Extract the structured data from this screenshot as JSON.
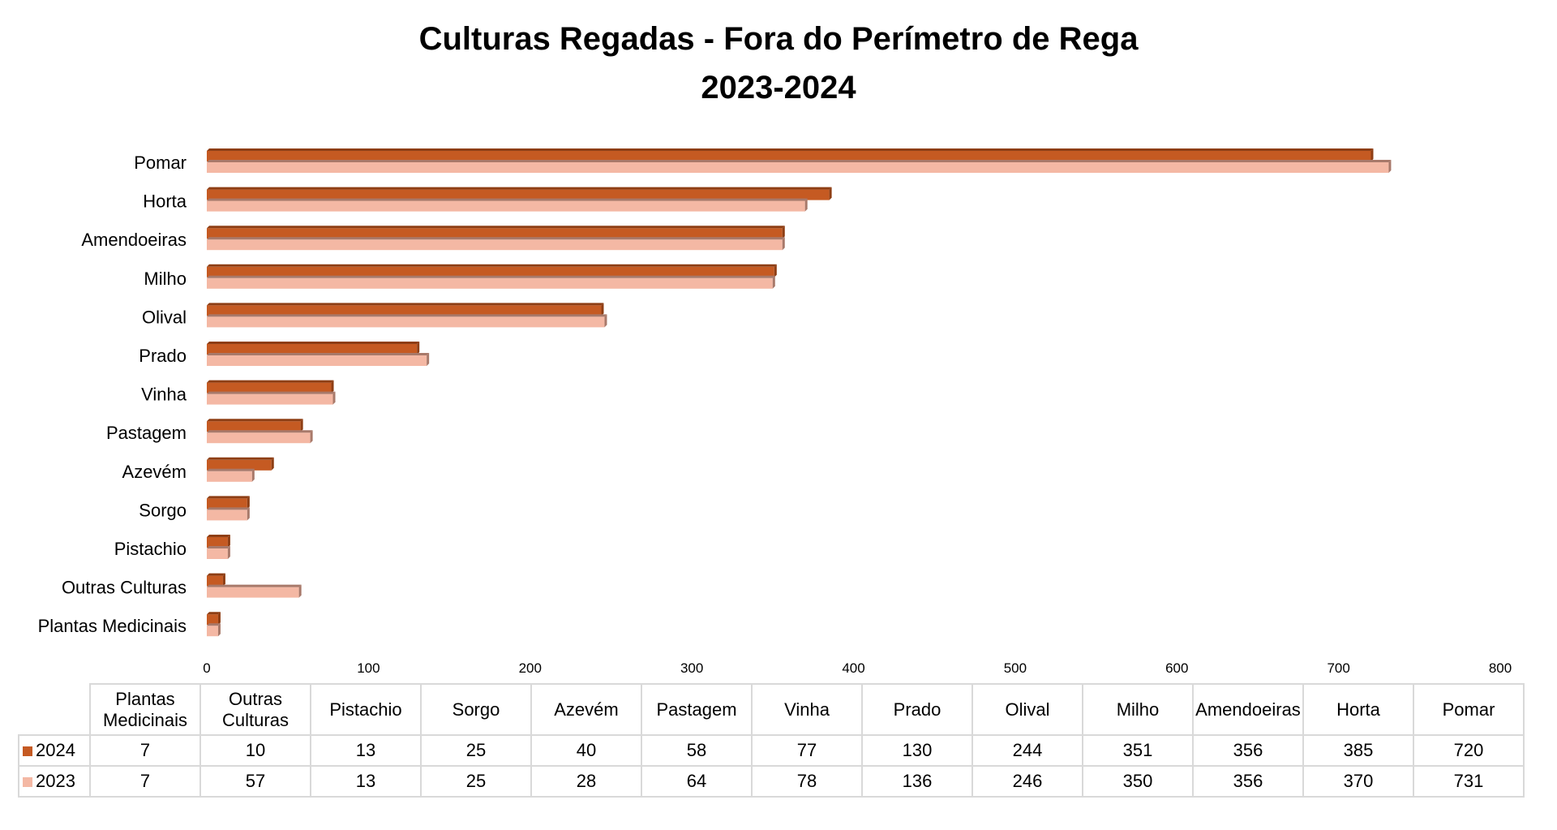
{
  "chart_data": {
    "type": "bar",
    "orientation": "horizontal",
    "title": "Culturas Regadas - Fora do Perímetro de Rega",
    "subtitle": "2023-2024",
    "categories": [
      "Plantas Medicinais",
      "Outras Culturas",
      "Pistachio",
      "Sorgo",
      "Azevém",
      "Pastagem",
      "Vinha",
      "Prado",
      "Olival",
      "Milho",
      "Amendoeiras",
      "Horta",
      "Pomar"
    ],
    "series": [
      {
        "name": "2024",
        "color": "#C55A22",
        "values": [
          7,
          10,
          13,
          25,
          40,
          58,
          77,
          130,
          244,
          351,
          356,
          385,
          720
        ]
      },
      {
        "name": "2023",
        "color": "#F4B8A4",
        "values": [
          7,
          57,
          13,
          25,
          28,
          64,
          78,
          136,
          246,
          350,
          356,
          370,
          731
        ]
      }
    ],
    "xlim": [
      0,
      800
    ],
    "xticks": [
      "0",
      "100",
      "200",
      "300",
      "400",
      "500",
      "600",
      "700",
      "800"
    ],
    "grid": false,
    "legend": "data-table"
  }
}
